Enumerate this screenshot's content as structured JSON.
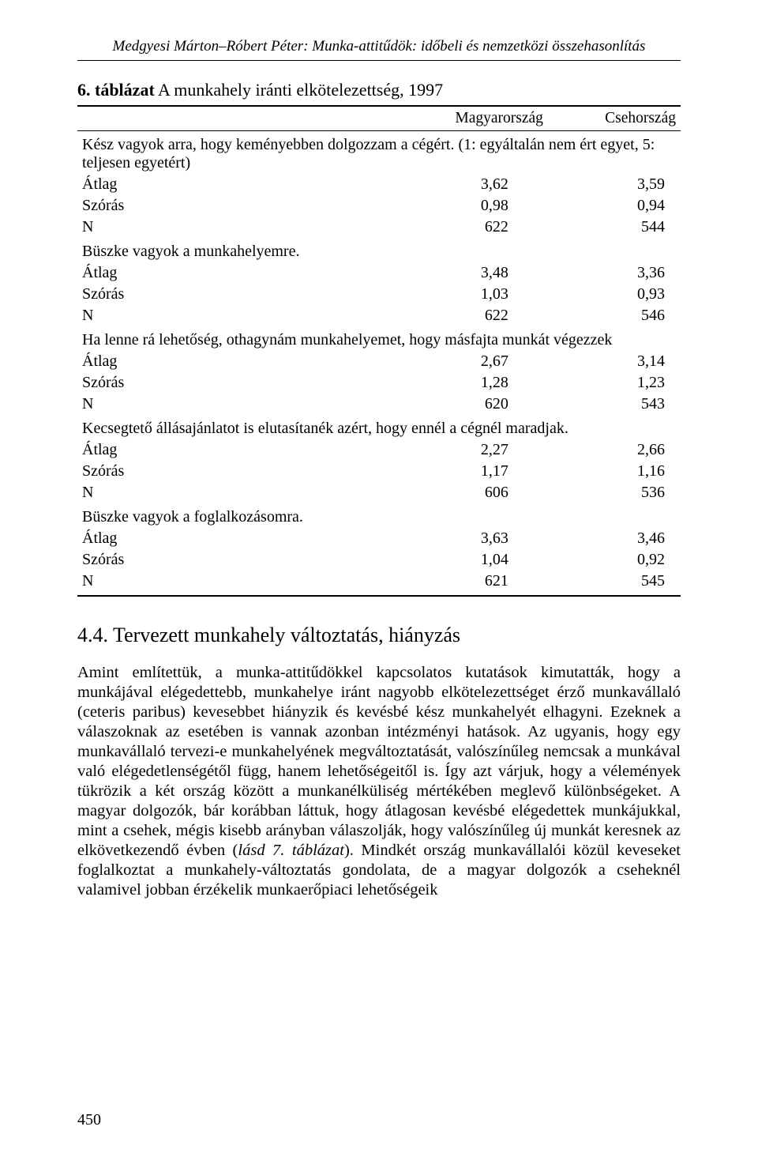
{
  "runningHeader": "Medgyesi Márton–Róbert Péter: Munka-attitűdök: időbeli és nemzetközi összehasonlítás",
  "tableTitle": {
    "prefix": "6. táblázat",
    "rest": " A munkahely iránti elkötelezettség, 1997"
  },
  "columns": {
    "c1": "Magyarország",
    "c2": "Csehország"
  },
  "groups": [
    {
      "title": "Kész vagyok arra, hogy keményebben dolgozzam a cégért. (1: egyáltalán nem ért egyet, 5: teljesen egyetért)",
      "rows": [
        {
          "label": "Átlag",
          "v1": "3,62",
          "v2": "3,59"
        },
        {
          "label": "Szórás",
          "v1": "0,98",
          "v2": "0,94"
        },
        {
          "label": "N",
          "v1": "622",
          "v2": "544"
        }
      ]
    },
    {
      "title": "Büszke vagyok a munkahelyemre.",
      "rows": [
        {
          "label": "Átlag",
          "v1": "3,48",
          "v2": "3,36"
        },
        {
          "label": "Szórás",
          "v1": "1,03",
          "v2": "0,93"
        },
        {
          "label": "N",
          "v1": "622",
          "v2": "546"
        }
      ]
    },
    {
      "title": "Ha lenne rá lehetőség, othagynám munkahelyemet, hogy másfajta munkát végezzek",
      "rows": [
        {
          "label": "Átlag",
          "v1": "2,67",
          "v2": "3,14"
        },
        {
          "label": "Szórás",
          "v1": "1,28",
          "v2": "1,23"
        },
        {
          "label": "N",
          "v1": "620",
          "v2": "543"
        }
      ]
    },
    {
      "title": "Kecsegtető állásajánlatot is elutasítanék azért, hogy ennél a cégnél maradjak.",
      "rows": [
        {
          "label": "Átlag",
          "v1": "2,27",
          "v2": "2,66"
        },
        {
          "label": "Szórás",
          "v1": "1,17",
          "v2": "1,16"
        },
        {
          "label": "N",
          "v1": "606",
          "v2": "536"
        }
      ]
    },
    {
      "title": "Büszke vagyok a foglalkozásomra.",
      "rows": [
        {
          "label": "Átlag",
          "v1": "3,63",
          "v2": "3,46"
        },
        {
          "label": "Szórás",
          "v1": "1,04",
          "v2": "0,92"
        },
        {
          "label": "N",
          "v1": "621",
          "v2": "545"
        }
      ]
    }
  ],
  "sectionHeading": "4.4. Tervezett munkahely változtatás, hiányzás",
  "paragraph": {
    "part1": "Amint említettük, a munka-attitűdökkel kapcsolatos kutatások kimutatták, hogy a munkájával elégedettebb, munkahelye iránt nagyobb elkötelezettséget érző munkavállaló (ceteris paribus) kevesebbet hiányzik és kevésbé kész munkahelyét elhagyni. Ezeknek a válaszoknak az esetében is vannak azonban intézményi hatások. Az ugyanis, hogy egy munkavállaló tervezi-e munkahelyének megváltoztatását, valószínűleg nemcsak a munkával való elégedetlenségétől függ, hanem lehetőségeitől is. Így azt várjuk, hogy a vélemények tükrözik a két ország között a munkanélküliség mértékében meglevő különbségeket. A magyar dolgozók, bár korábban láttuk, hogy átlagosan kevésbé elégedettek munkájukkal, mint a csehek, mégis kisebb arányban válaszolják, hogy valószínűleg új munkát keresnek az elkövetkezendő évben (",
    "italic": "lásd 7. táblázat",
    "part2": "). Mindkét ország munkavállalói közül keveseket foglalkoztat a munkahely-változtatás gondolata, de a magyar dolgozók a cseheknél valamivel jobban érzékelik munkaerőpiaci lehetőségeik"
  },
  "pageNumber": "450"
}
